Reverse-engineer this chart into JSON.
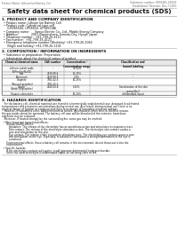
{
  "title": "Safety data sheet for chemical products (SDS)",
  "header_left": "Product Name: Lithium Ion Battery Cell",
  "header_right_line1": "Substance number: 5BP4481-00010",
  "header_right_line2": "Established / Revision: Dec.7.2010",
  "section1_title": "1. PRODUCT AND COMPANY IDENTIFICATION",
  "section1_lines": [
    "  • Product name: Lithium Ion Battery Cell",
    "  • Product code: Cylindrical-type cell",
    "      (UF885500, UF18650, UF18650A)",
    "  • Company name:      Sanyo Electric Co., Ltd., Mobile Energy Company",
    "  • Address:              2001 Kamimahara, Sumoto-City, Hyogo, Japan",
    "  • Telephone number:  +81-799-26-4111",
    "  • Fax number:  +81-799-26-4121",
    "  • Emergency telephone number (Weekday) +81-799-26-2062",
    "      (Night and holiday) +81-799-26-2101"
  ],
  "section2_title": "2. COMPOSITION / INFORMATION ON INGREDIENTS",
  "section2_sub1": "  • Substance or preparation: Preparation",
  "section2_sub2": "  • Information about the chemical nature of product",
  "table_col_headers": [
    "Chemical/chemical name",
    "CAS number",
    "Concentration /\nConcentration range",
    "Classification and\nhazard labeling"
  ],
  "table_rows": [
    [
      "Lithium cobalt oxide\n(LiMnxCoyNizO2)",
      "-",
      "30-50%",
      "-"
    ],
    [
      "Iron",
      "7439-89-6",
      "15-25%",
      "-"
    ],
    [
      "Aluminum",
      "7429-90-5",
      "2-5%",
      "-"
    ],
    [
      "Graphite\n(Natural graphite)\n(Artificial graphite)",
      "7782-42-5\n7782-42-5",
      "10-25%",
      "-"
    ],
    [
      "Copper",
      "7440-50-8",
      "5-15%",
      "Sensitization of the skin\ngroup No.2"
    ],
    [
      "Organic electrolyte",
      "-",
      "10-20%",
      "Inflammable liquid"
    ]
  ],
  "section3_title": "3. HAZARDS IDENTIFICATION",
  "section3_para1": [
    "   For the battery cell, chemical materials are stored in a hermetically sealed metal case, designed to withstand",
    "temperatures and pressures-concentrations during normal use. As a result, during normal use, there is no",
    "physical danger of ignition or explosion and there is no danger of hazardous materials leakage.",
    "   However, if exposed to a fire, added mechanical shocks, decomposed, when electric shock or misuse.",
    "the gas inside cannot be operated. The battery cell case will be breached of the extreme, hazardous",
    "materials may be released.",
    "   Moreover, if heated strongly by the surrounding fire, some gas may be emitted."
  ],
  "section3_bullet1": "  • Most important hazard and effects:",
  "section3_human": "      Human health effects:",
  "section3_human_details": [
    "         Inhalation: The release of the electrolyte has an anesthesia action and stimulates in respiratory tract.",
    "         Skin contact: The release of the electrolyte stimulates a skin. The electrolyte skin contact causes a",
    "         sore and stimulation on the skin.",
    "         Eye contact: The release of the electrolyte stimulates eyes. The electrolyte eye contact causes a sore",
    "         and stimulation on the eye. Especially, a substance that causes a strong inflammation of the eye is",
    "         contained."
  ],
  "section3_env": "      Environmental effects: Since a battery cell remains in the environment, do not throw out it into the",
  "section3_env2": "      environment.",
  "section3_bullet2": "  • Specific hazards:",
  "section3_specific": [
    "      If the electrolyte contacts with water, it will generate detrimental hydrogen fluoride.",
    "      Since the used electrolyte is inflammable liquid, do not bring close to fire."
  ],
  "bg_color": "#ffffff",
  "text_color": "#111111",
  "gray_text": "#666666",
  "line_color": "#aaaaaa",
  "table_header_bg": "#e8e8e8"
}
